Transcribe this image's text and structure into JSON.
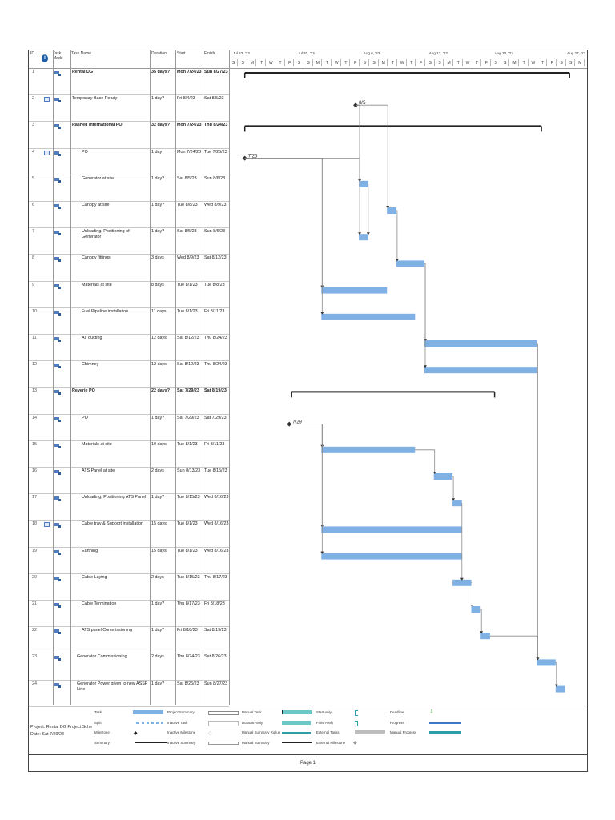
{
  "headers": {
    "id": "ID",
    "mode": "Task Mode",
    "name": "Task Name",
    "duration": "Duration",
    "start": "Start",
    "finish": "Finish"
  },
  "timescale": {
    "weeks": [
      "Jul 23, '23",
      "Jul 30, '23",
      "Aug 6, '23",
      "Aug 13, '23",
      "Aug 20, '23",
      "Aug 27, '23"
    ],
    "days": [
      "S",
      "S",
      "M",
      "T",
      "W",
      "T",
      "F",
      "S",
      "S",
      "M",
      "T",
      "W",
      "T",
      "F",
      "S",
      "S",
      "M",
      "T",
      "W",
      "T",
      "F",
      "S",
      "S",
      "M",
      "T",
      "W",
      "T",
      "F",
      "S",
      "S",
      "M",
      "T",
      "W",
      "T",
      "F",
      "S",
      "S",
      "M"
    ]
  },
  "tasks": [
    {
      "id": "1",
      "name": "Rental DG",
      "duration": "35 days?",
      "start": "Mon 7/24/23",
      "finish": "Sun 8/27/23",
      "summary": true
    },
    {
      "id": "2",
      "name": "Temporary Base Ready",
      "duration": "1 day?",
      "start": "Fri 8/4/23",
      "finish": "Sat 8/5/23",
      "milestone_label": "8/5"
    },
    {
      "id": "3",
      "name": "Rashed International PO",
      "duration": "32 days?",
      "start": "Mon 7/24/23",
      "finish": "Thu 8/24/23",
      "summary": true
    },
    {
      "id": "4",
      "name": "PO",
      "duration": "1 day",
      "start": "Mon 7/24/23",
      "finish": "Tue 7/25/23",
      "milestone_label": "7/25"
    },
    {
      "id": "5",
      "name": "Generator at site",
      "duration": "1 day?",
      "start": "Sat 8/5/23",
      "finish": "Sun 8/6/23"
    },
    {
      "id": "6",
      "name": "Canopy at site",
      "duration": "1 day?",
      "start": "Tue 8/8/23",
      "finish": "Wed 8/9/23"
    },
    {
      "id": "7",
      "name": "Unloading, Positioning of Generator",
      "duration": "1 day?",
      "start": "Sat 8/5/23",
      "finish": "Sun 8/6/23"
    },
    {
      "id": "8",
      "name": "Canopy fittings",
      "duration": "3 days",
      "start": "Wed 8/9/23",
      "finish": "Sat 8/12/23"
    },
    {
      "id": "9",
      "name": "Materials at site",
      "duration": "8 days",
      "start": "Tue 8/1/23",
      "finish": "Tue 8/8/23"
    },
    {
      "id": "10",
      "name": "Fuel Pipeline installation",
      "duration": "11 days",
      "start": "Tue 8/1/23",
      "finish": "Fri 8/11/23"
    },
    {
      "id": "11",
      "name": "Air ducting",
      "duration": "12 days",
      "start": "Sat 8/12/23",
      "finish": "Thu 8/24/23"
    },
    {
      "id": "12",
      "name": "Chimney",
      "duration": "12 days",
      "start": "Sat 8/12/23",
      "finish": "Thu 8/24/23"
    },
    {
      "id": "13",
      "name": "Reverie PO",
      "duration": "22 days?",
      "start": "Sat 7/29/23",
      "finish": "Sat 8/19/23",
      "summary": true
    },
    {
      "id": "14",
      "name": "PO",
      "duration": "1 day?",
      "start": "Sat 7/29/23",
      "finish": "Sat 7/29/23",
      "milestone_label": "7/29"
    },
    {
      "id": "15",
      "name": "Materials at site",
      "duration": "10 days",
      "start": "Tue 8/1/23",
      "finish": "Fri 8/11/23"
    },
    {
      "id": "16",
      "name": "ATS Panel at site",
      "duration": "2 days",
      "start": "Sun 8/13/23",
      "finish": "Tue 8/15/23"
    },
    {
      "id": "17",
      "name": "Unloading, Positioning ATS Panel",
      "duration": "1 day?",
      "start": "Tue 8/15/23",
      "finish": "Wed 8/16/23"
    },
    {
      "id": "18",
      "name": "Cable tray & Support installation",
      "duration": "15 days",
      "start": "Tue 8/1/23",
      "finish": "Wed 8/16/23"
    },
    {
      "id": "19",
      "name": "Earthing",
      "duration": "15 days",
      "start": "Tue 8/1/23",
      "finish": "Wed 8/16/23"
    },
    {
      "id": "20",
      "name": "Cable Laying",
      "duration": "2 days",
      "start": "Tue 8/15/23",
      "finish": "Thu 8/17/23"
    },
    {
      "id": "21",
      "name": "Cable Termination",
      "duration": "1 day?",
      "start": "Thu 8/17/23",
      "finish": "Fri 8/18/23"
    },
    {
      "id": "22",
      "name": "ATS panel Commissioning",
      "duration": "1 day?",
      "start": "Fri 8/18/23",
      "finish": "Sat 8/19/23"
    },
    {
      "id": "23",
      "name": "Generator Commissioning",
      "duration": "2 days",
      "start": "Thu 8/24/23",
      "finish": "Sat 8/26/23"
    },
    {
      "id": "24",
      "name": "Generator Power given to new ASSP Line",
      "duration": "1 day?",
      "start": "Sat 8/26/23",
      "finish": "Sun 8/27/23"
    }
  ],
  "legend": {
    "project": "Project: Rental DG Project Sche",
    "date": "Date: Sat 7/29/23",
    "items": {
      "task": "Task",
      "split": "Split",
      "milestone": "Milestone",
      "summary": "Summary",
      "project_summary": "Project Summary",
      "inactive_task": "Inactive Task",
      "inactive_milestone": "Inactive Milestone",
      "inactive_summary": "Inactive Summary",
      "manual_task": "Manual Task",
      "duration_only": "Duration-only",
      "manual_summary_rollup": "Manual Summary Rollup",
      "manual_summary": "Manual Summary",
      "start_only": "Start-only",
      "finish_only": "Finish-only",
      "external_tasks": "External Tasks",
      "external_milestone": "External Milestone",
      "deadline": "Deadline",
      "progress": "Progress",
      "manual_progress": "Manual Progress"
    }
  },
  "footer": {
    "page": "Page 1"
  },
  "colors": {
    "bar": "#7fb1e4",
    "summary": "#222222",
    "link": "#8a8a8a",
    "accent": "#1f5fa8"
  }
}
